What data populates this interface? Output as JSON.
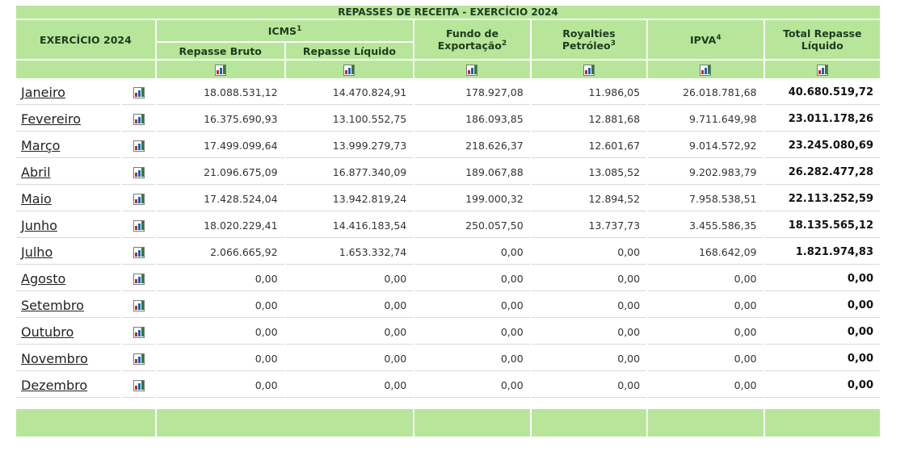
{
  "title": "REPASSES DE RECEITA - EXERCÍCIO 2024",
  "header": {
    "exercicio": "EXERCÍCIO 2024",
    "icms": "ICMS",
    "icms_sup": "1",
    "repasse_bruto": "Repasse Bruto",
    "repasse_liquido": "Repasse Líquido",
    "fundo_line1": "Fundo de",
    "fundo_line2": "Exportação",
    "fundo_sup": "2",
    "royalties_line1": "Royalties",
    "royalties_line2": "Petróleo",
    "royalties_sup": "3",
    "ipva": "IPVA",
    "ipva_sup": "4",
    "total_line1": "Total Repasse",
    "total_line2": "Líquido"
  },
  "rows": [
    {
      "month": "Janeiro",
      "bruto": "18.088.531,12",
      "liquido": "14.470.824,91",
      "fundo": "178.927,08",
      "royalties": "11.986,05",
      "ipva": "26.018.781,68",
      "total": "40.680.519,72"
    },
    {
      "month": "Fevereiro",
      "bruto": "16.375.690,93",
      "liquido": "13.100.552,75",
      "fundo": "186.093,85",
      "royalties": "12.881,68",
      "ipva": "9.711.649,98",
      "total": "23.011.178,26"
    },
    {
      "month": "Março",
      "bruto": "17.499.099,64",
      "liquido": "13.999.279,73",
      "fundo": "218.626,37",
      "royalties": "12.601,67",
      "ipva": "9.014.572,92",
      "total": "23.245.080,69"
    },
    {
      "month": "Abril",
      "bruto": "21.096.675,09",
      "liquido": "16.877.340,09",
      "fundo": "189.067,88",
      "royalties": "13.085,52",
      "ipva": "9.202.983,79",
      "total": "26.282.477,28"
    },
    {
      "month": "Maio",
      "bruto": "17.428.524,04",
      "liquido": "13.942.819,24",
      "fundo": "199.000,32",
      "royalties": "12.894,52",
      "ipva": "7.958.538,51",
      "total": "22.113.252,59"
    },
    {
      "month": "Junho",
      "bruto": "18.020.229,41",
      "liquido": "14.416.183,54",
      "fundo": "250.057,50",
      "royalties": "13.737,73",
      "ipva": "3.455.586,35",
      "total": "18.135.565,12"
    },
    {
      "month": "Julho",
      "bruto": "2.066.665,92",
      "liquido": "1.653.332,74",
      "fundo": "0,00",
      "royalties": "0,00",
      "ipva": "168.642,09",
      "total": "1.821.974,83"
    },
    {
      "month": "Agosto",
      "bruto": "0,00",
      "liquido": "0,00",
      "fundo": "0,00",
      "royalties": "0,00",
      "ipva": "0,00",
      "total": "0,00"
    },
    {
      "month": "Setembro",
      "bruto": "0,00",
      "liquido": "0,00",
      "fundo": "0,00",
      "royalties": "0,00",
      "ipva": "0,00",
      "total": "0,00"
    },
    {
      "month": "Outubro",
      "bruto": "0,00",
      "liquido": "0,00",
      "fundo": "0,00",
      "royalties": "0,00",
      "ipva": "0,00",
      "total": "0,00"
    },
    {
      "month": "Novembro",
      "bruto": "0,00",
      "liquido": "0,00",
      "fundo": "0,00",
      "royalties": "0,00",
      "ipva": "0,00",
      "total": "0,00"
    },
    {
      "month": "Dezembro",
      "bruto": "0,00",
      "liquido": "0,00",
      "fundo": "0,00",
      "royalties": "0,00",
      "ipva": "0,00",
      "total": "0,00"
    }
  ],
  "icons": {
    "chart": "bar-chart-icon"
  },
  "colors": {
    "header_bg": "#b7e69a",
    "border": "#d9d9d9"
  }
}
